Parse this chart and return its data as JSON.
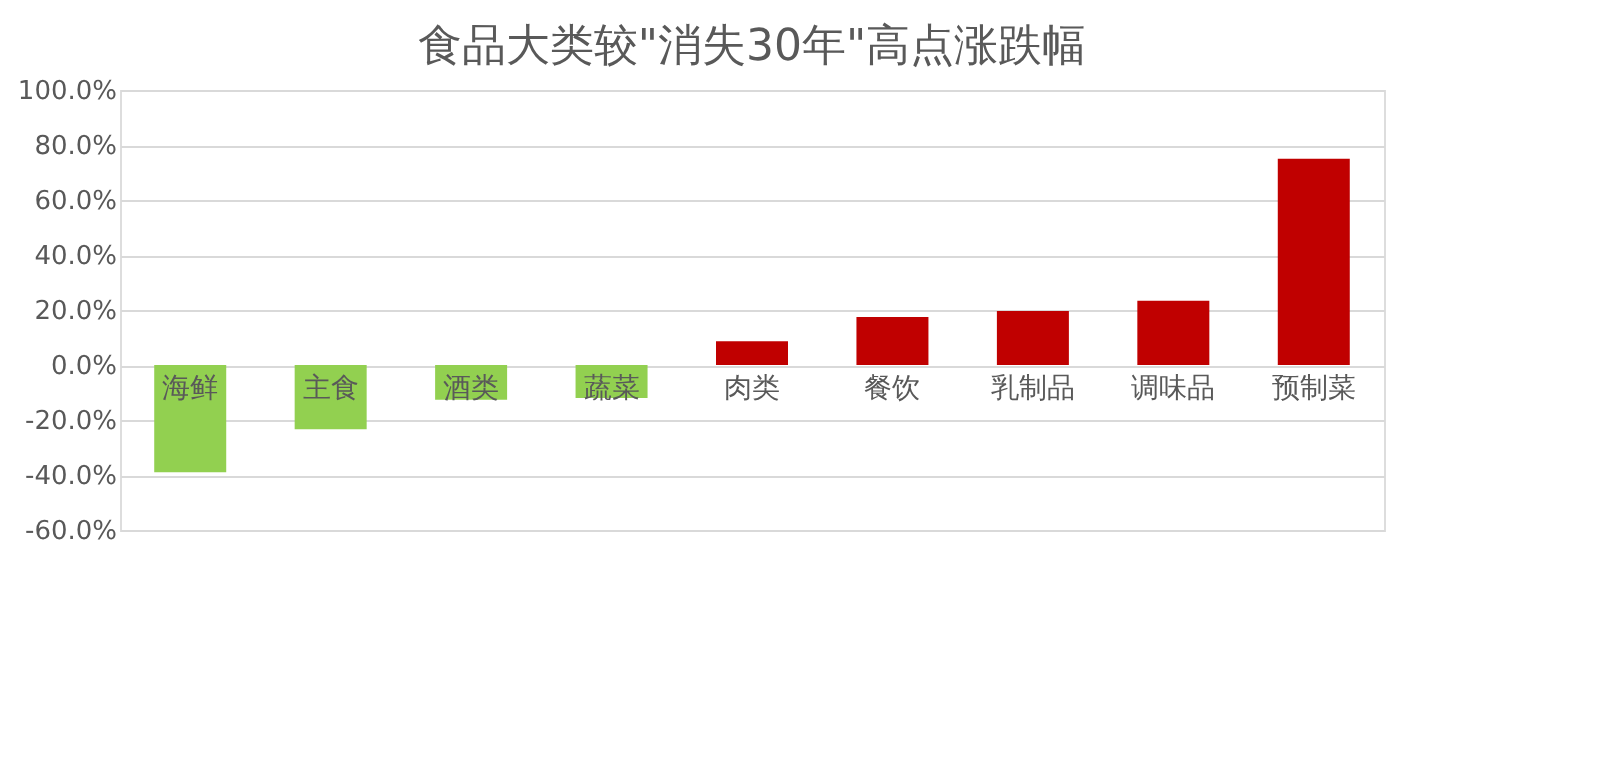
{
  "chart_data": {
    "type": "bar",
    "title": "食品大类较\"消失30年\"高点涨跌幅",
    "categories": [
      "海鲜",
      "主食",
      "酒类",
      "蔬菜",
      "肉类",
      "餐饮",
      "乳制品",
      "调味品",
      "预制菜"
    ],
    "values": [
      -39,
      -23.4,
      -12.6,
      -12,
      8.6,
      17.5,
      19.6,
      23.4,
      75
    ],
    "colors": [
      "#92d050",
      "#92d050",
      "#92d050",
      "#92d050",
      "#c00000",
      "#c00000",
      "#c00000",
      "#c00000",
      "#c00000"
    ],
    "ylim": [
      -60,
      100
    ],
    "yticks": [
      {
        "value": -60,
        "label": "-60.0%"
      },
      {
        "value": -40,
        "label": "-40.0%"
      },
      {
        "value": -20,
        "label": "-20.0%"
      },
      {
        "value": 0,
        "label": "0.0%"
      },
      {
        "value": 20,
        "label": "20.0%"
      },
      {
        "value": 40,
        "label": "40.0%"
      },
      {
        "value": 60,
        "label": "60.0%"
      },
      {
        "value": 80,
        "label": "80.0%"
      },
      {
        "value": 100,
        "label": "100.0%"
      }
    ],
    "grid": "y"
  }
}
